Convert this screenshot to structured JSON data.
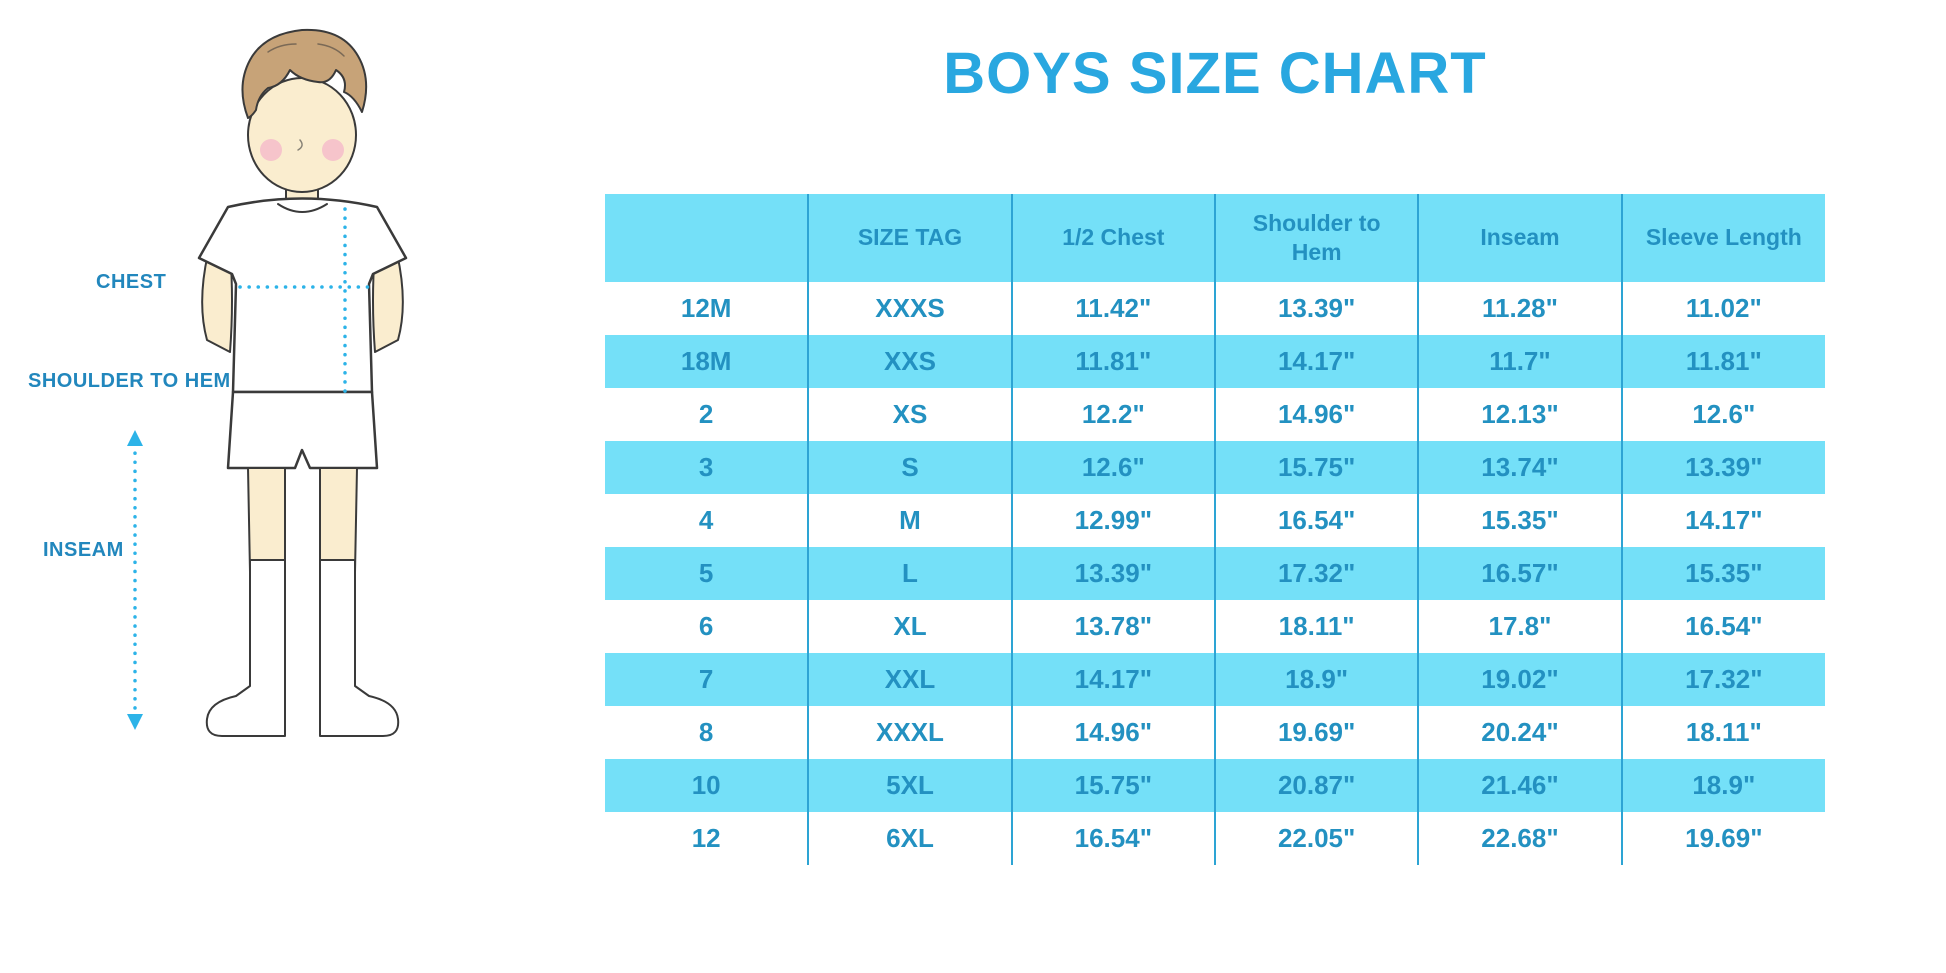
{
  "title": "BOYS SIZE CHART",
  "labels": {
    "chest": "CHEST",
    "shoulder_to_hem": "SHOULDER TO HEM",
    "inseam": "INSEAM"
  },
  "colors": {
    "accent_blue": "#29a7e0",
    "stripe_blue": "#74e0f8",
    "table_text_blue": "#2391c1",
    "divider_blue": "#2da4d4",
    "dotted_line_cyan": "#2cb3e8",
    "skin": "#faedcf",
    "hair_brown": "#c7a378",
    "blush_pink": "#f5bfca"
  },
  "icons": {
    "boy_illustration": "boy-figure-front-view-with-dotted-measurement-lines",
    "chest_cross_line": "dotted-cross-measurement-line",
    "inseam_line": "dotted-vertical-double-arrow-line"
  },
  "chart_data": {
    "type": "table",
    "title": "BOYS SIZE CHART",
    "columns": [
      "",
      "SIZE TAG",
      "1/2 Chest",
      "Shoulder to Hem",
      "Inseam",
      "Sleeve Length"
    ],
    "rows": [
      [
        "12M",
        "XXXS",
        "11.42\"",
        "13.39\"",
        "11.28\"",
        "11.02\""
      ],
      [
        "18M",
        "XXS",
        "11.81\"",
        "14.17\"",
        "11.7\"",
        "11.81\""
      ],
      [
        "2",
        "XS",
        "12.2\"",
        "14.96\"",
        "12.13\"",
        "12.6\""
      ],
      [
        "3",
        "S",
        "12.6\"",
        "15.75\"",
        "13.74\"",
        "13.39\""
      ],
      [
        "4",
        "M",
        "12.99\"",
        "16.54\"",
        "15.35\"",
        "14.17\""
      ],
      [
        "5",
        "L",
        "13.39\"",
        "17.32\"",
        "16.57\"",
        "15.35\""
      ],
      [
        "6",
        "XL",
        "13.78\"",
        "18.11\"",
        "17.8\"",
        "16.54\""
      ],
      [
        "7",
        "XXL",
        "14.17\"",
        "18.9\"",
        "19.02\"",
        "17.32\""
      ],
      [
        "8",
        "XXXL",
        "14.96\"",
        "19.69\"",
        "20.24\"",
        "18.11\""
      ],
      [
        "10",
        "5XL",
        "15.75\"",
        "20.87\"",
        "21.46\"",
        "18.9\""
      ],
      [
        "12",
        "6XL",
        "16.54\"",
        "22.05\"",
        "22.68\"",
        "19.69\""
      ]
    ],
    "row_striping": "white and light-cyan alternating, header light-cyan",
    "legend_position": "none",
    "grid": "vertical column dividers only"
  }
}
